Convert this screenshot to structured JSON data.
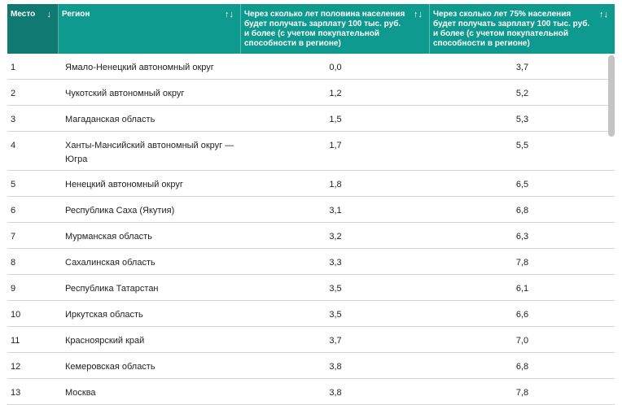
{
  "table": {
    "headers": [
      {
        "label": "Место",
        "sort_icon": "↓"
      },
      {
        "label": "Регион",
        "sort_icon": "↑↓"
      },
      {
        "label": "Через сколько лет половина населения будет получать зарплату 100 тыс. руб. и более (с учетом покупательной способности в регионе)",
        "sort_icon": "↑↓"
      },
      {
        "label": "Через сколько лет 75% населения будет получать зарплату 100 тыс. руб. и более (с учетом покупательной способности в регионе)",
        "sort_icon": "↑↓"
      }
    ],
    "rows": [
      {
        "place": "1",
        "region": "Ямало-Ненецкий автономный округ",
        "half": "0,0",
        "seventy_five": "3,7"
      },
      {
        "place": "2",
        "region": "Чукотский автономный округ",
        "half": "1,2",
        "seventy_five": "5,2"
      },
      {
        "place": "3",
        "region": "Магаданская область",
        "half": "1,5",
        "seventy_five": "5,3"
      },
      {
        "place": "4",
        "region": "Ханты-Мансийский автономный округ — Югра",
        "half": "1,7",
        "seventy_five": "5,5"
      },
      {
        "place": "5",
        "region": "Ненецкий автономный округ",
        "half": "1,8",
        "seventy_five": "6,5"
      },
      {
        "place": "6",
        "region": "Республика Саха (Якутия)",
        "half": "3,1",
        "seventy_five": "6,8"
      },
      {
        "place": "7",
        "region": "Мурманская область",
        "half": "3,2",
        "seventy_five": "6,3"
      },
      {
        "place": "8",
        "region": "Сахалинская область",
        "half": "3,3",
        "seventy_five": "7,8"
      },
      {
        "place": "9",
        "region": "Республика Татарстан",
        "half": "3,5",
        "seventy_five": "6,1"
      },
      {
        "place": "10",
        "region": "Иркутская область",
        "half": "3,5",
        "seventy_five": "6,6"
      },
      {
        "place": "11",
        "region": "Красноярский край",
        "half": "3,7",
        "seventy_five": "7,0"
      },
      {
        "place": "12",
        "region": "Кемеровская область",
        "half": "3,8",
        "seventy_five": "6,8"
      },
      {
        "place": "13",
        "region": "Москва",
        "half": "3,8",
        "seventy_five": "7,8"
      }
    ]
  },
  "colors": {
    "header_bg": "#0f9a8f",
    "header_active_bg": "#107a72",
    "row_border": "#d6d6d6",
    "scrollbar": "#c4c4c4"
  }
}
